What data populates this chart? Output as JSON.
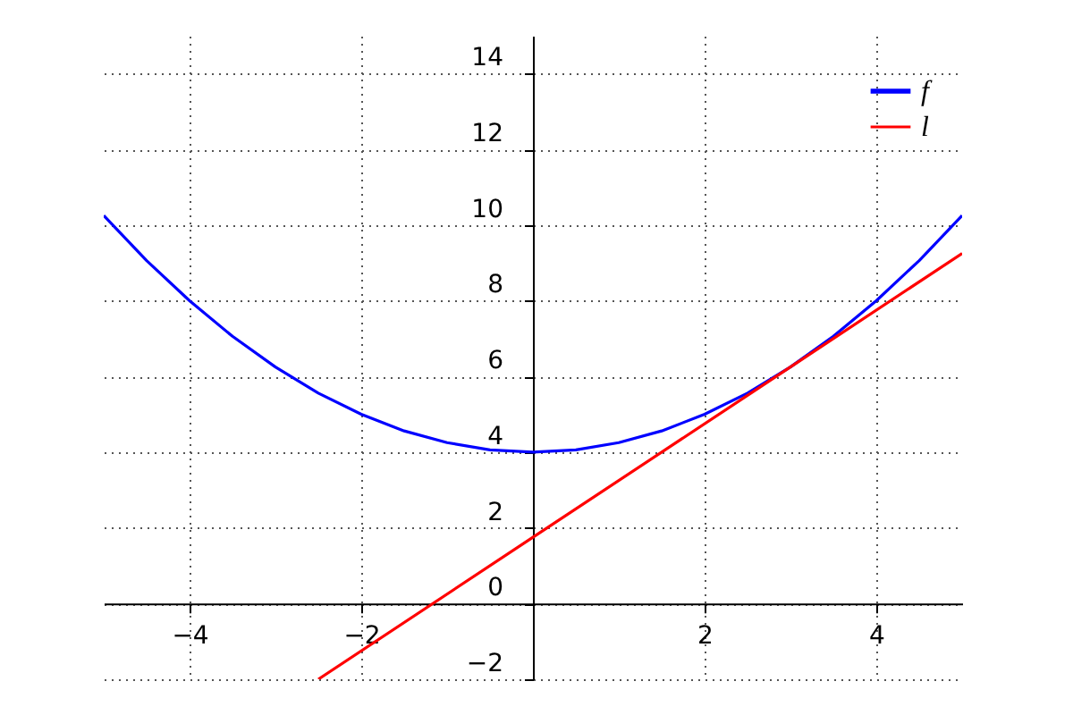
{
  "chart_data": {
    "type": "line",
    "xlim": [
      -5,
      5
    ],
    "ylim": [
      -2,
      15
    ],
    "xticks": [
      -4,
      -2,
      2,
      4
    ],
    "yticks": [
      -2,
      0,
      2,
      4,
      6,
      8,
      10,
      12,
      14
    ],
    "grid": true,
    "legend": "top right",
    "line_style": "solid",
    "marker": "none",
    "series": [
      {
        "name": "f",
        "color": "#0000ff",
        "x": [
          -5,
          -4.5,
          -4,
          -3.5,
          -3,
          -2.5,
          -2,
          -1.5,
          -1,
          -0.5,
          0,
          0.5,
          1,
          1.5,
          2,
          2.5,
          3,
          3.5,
          4,
          4.5,
          5
        ],
        "values": [
          10.25,
          9.06,
          8,
          7.06,
          6.25,
          5.56,
          5,
          4.56,
          4.25,
          4.06,
          4,
          4.06,
          4.25,
          4.56,
          5,
          5.56,
          6.25,
          7.06,
          8,
          9.06,
          10.25
        ]
      },
      {
        "name": "l",
        "color": "#ff0000",
        "x": [
          -2.5,
          0,
          3,
          5
        ],
        "values": [
          -2,
          1.75,
          6.25,
          9.25
        ]
      }
    ]
  }
}
